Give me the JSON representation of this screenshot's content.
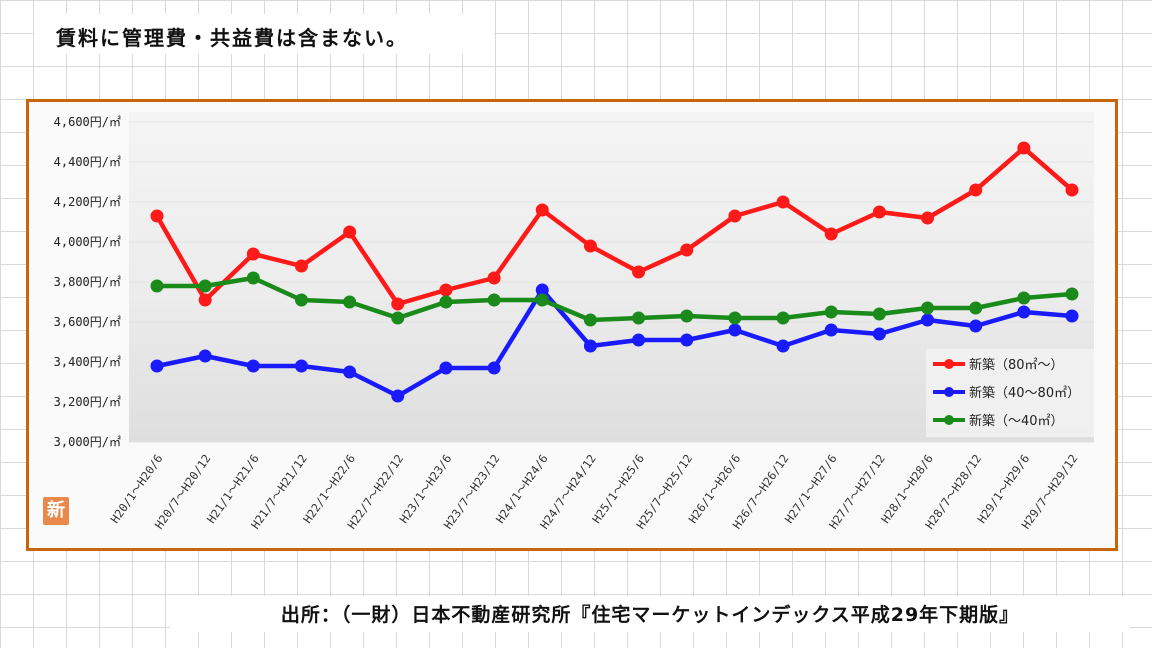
{
  "note": "賃料に管理費・共益費は含まない。",
  "source": "出所：（一財）日本不動産研究所『住宅マーケットインデックス平成29年下期版』",
  "badge": "新",
  "colors": {
    "red": "#ff1a1a",
    "blue": "#1a1aff",
    "green": "#1a8a1a",
    "frame": "#c8640a"
  },
  "chart_data": {
    "type": "line",
    "yticks": [
      "4,600円/㎡",
      "4,400円/㎡",
      "4,200円/㎡",
      "4,000円/㎡",
      "3,800円/㎡",
      "3,600円/㎡",
      "3,400円/㎡",
      "3,200円/㎡",
      "3,000円/㎡"
    ],
    "ylim": [
      3000,
      4600
    ],
    "legend_placement": "right",
    "categories": [
      "H20/1～H20/6",
      "H20/7～H20/12",
      "H21/1～H21/6",
      "H21/7～H21/12",
      "H22/1～H22/6",
      "H22/7～H22/12",
      "H23/1～H23/6",
      "H23/7～H23/12",
      "H24/1～H24/6",
      "H24/7～H24/12",
      "H25/1～H25/6",
      "H25/7～H25/12",
      "H26/1～H26/6",
      "H26/7～H26/12",
      "H27/1～H27/6",
      "H27/7～H27/12",
      "H28/1～H28/6",
      "H28/7～H28/12",
      "H29/1～H29/6",
      "H29/7～H29/12"
    ],
    "series": [
      {
        "name": "新築（80㎡～）",
        "color": "#ff1a1a",
        "values": [
          4130,
          3710,
          3940,
          3880,
          4050,
          3690,
          3760,
          3820,
          4160,
          3980,
          3850,
          3960,
          4130,
          4200,
          4040,
          4150,
          4120,
          4260,
          4470,
          4260
        ]
      },
      {
        "name": "新築（40～80㎡）",
        "color": "#1a1aff",
        "values": [
          3380,
          3430,
          3380,
          3380,
          3350,
          3230,
          3370,
          3370,
          3760,
          3480,
          3510,
          3510,
          3560,
          3480,
          3560,
          3540,
          3610,
          3580,
          3650,
          3630
        ]
      },
      {
        "name": "新築（～40㎡）",
        "color": "#1a8a1a",
        "values": [
          3780,
          3780,
          3820,
          3710,
          3700,
          3620,
          3700,
          3710,
          3710,
          3610,
          3620,
          3630,
          3620,
          3620,
          3650,
          3640,
          3670,
          3670,
          3720,
          3740
        ]
      }
    ]
  }
}
